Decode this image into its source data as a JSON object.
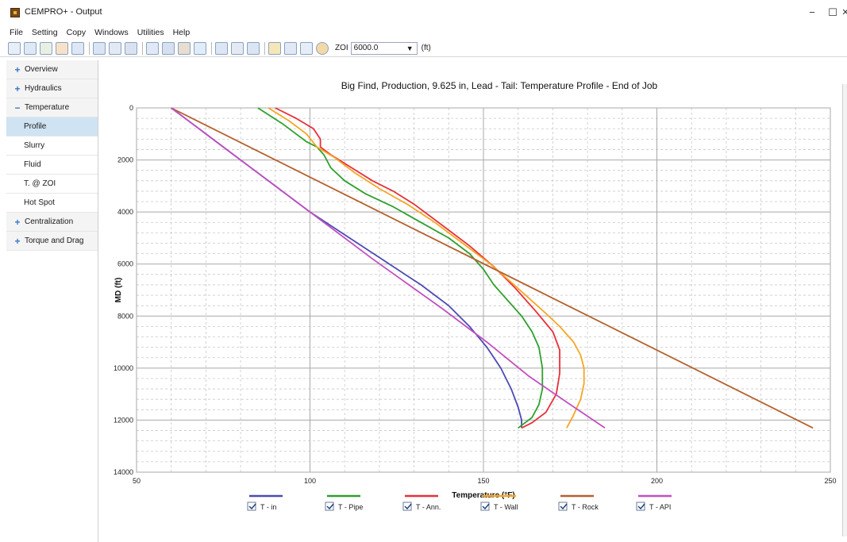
{
  "window": {
    "title": "CEMPRO+ - Output",
    "controls": [
      "−",
      "☐",
      "✕"
    ]
  },
  "menu": [
    "File",
    "Setting",
    "Copy",
    "Windows",
    "Utilities",
    "Help"
  ],
  "toolbar": {
    "zoi_label": "ZOI",
    "zoi_value": "6000.0",
    "unit": "(ft)"
  },
  "sidebar": {
    "items": [
      {
        "label": "Overview",
        "type": "group",
        "icon": "plus-icon"
      },
      {
        "label": "Hydraulics",
        "type": "group",
        "icon": "plus-icon"
      },
      {
        "label": "Temperature",
        "type": "group",
        "icon": "minus-icon"
      },
      {
        "label": "Profile",
        "type": "sub",
        "active": true
      },
      {
        "label": "Slurry",
        "type": "sub"
      },
      {
        "label": "Fluid",
        "type": "sub"
      },
      {
        "label": "T. @ ZOI",
        "type": "sub"
      },
      {
        "label": "Hot Spot",
        "type": "sub"
      },
      {
        "label": "Centralization",
        "type": "group",
        "icon": "plus-icon"
      },
      {
        "label": "Torque and Drag",
        "type": "group",
        "icon": "plus-icon"
      }
    ]
  },
  "chart_data": {
    "type": "line",
    "title": "Big Find, Production, 9.625 in, Lead - Tail:  Temperature Profile - End of Job",
    "xlabel": "Temperature (°F)",
    "ylabel": "MD (ft)",
    "xlim": [
      50,
      250
    ],
    "ylim": [
      0,
      14000
    ],
    "y_inverted": true,
    "x_ticks": [
      50,
      100,
      150,
      200,
      250
    ],
    "y_ticks": [
      0,
      2000,
      4000,
      6000,
      8000,
      10000,
      12000,
      14000
    ],
    "grid": true,
    "legend_position": "bottom",
    "series": [
      {
        "name": "T - in",
        "color": "#4b4bb5",
        "checked": true,
        "points": [
          [
            60,
            0
          ],
          [
            68,
            800
          ],
          [
            76,
            1600
          ],
          [
            84,
            2400
          ],
          [
            92,
            3200
          ],
          [
            100,
            4000
          ],
          [
            108,
            4700
          ],
          [
            116,
            5400
          ],
          [
            124,
            6100
          ],
          [
            132,
            6800
          ],
          [
            140,
            7600
          ],
          [
            146,
            8400
          ],
          [
            151,
            9200
          ],
          [
            155,
            10000
          ],
          [
            158,
            10800
          ],
          [
            160,
            11500
          ],
          [
            161,
            12000
          ],
          [
            161,
            12300
          ]
        ]
      },
      {
        "name": "T - Pipe",
        "color": "#2ea02e",
        "checked": true,
        "points": [
          [
            85,
            0
          ],
          [
            92,
            600
          ],
          [
            96,
            1000
          ],
          [
            99,
            1300
          ],
          [
            102,
            1500
          ],
          [
            104,
            1800
          ],
          [
            106,
            2300
          ],
          [
            110,
            2800
          ],
          [
            116,
            3300
          ],
          [
            124,
            3800
          ],
          [
            132,
            4400
          ],
          [
            140,
            5000
          ],
          [
            146,
            5600
          ],
          [
            150,
            6200
          ],
          [
            153,
            6800
          ],
          [
            157,
            7400
          ],
          [
            161,
            8000
          ],
          [
            164,
            8600
          ],
          [
            166,
            9200
          ],
          [
            167,
            10000
          ],
          [
            167,
            10800
          ],
          [
            166,
            11400
          ],
          [
            164,
            11900
          ],
          [
            160,
            12300
          ]
        ]
      },
      {
        "name": "T - Ann.",
        "color": "#e8303a",
        "checked": true,
        "points": [
          [
            90,
            0
          ],
          [
            96,
            400
          ],
          [
            101,
            800
          ],
          [
            103,
            1200
          ],
          [
            103,
            1500
          ],
          [
            106,
            1800
          ],
          [
            112,
            2300
          ],
          [
            118,
            2800
          ],
          [
            124,
            3200
          ],
          [
            130,
            3700
          ],
          [
            138,
            4500
          ],
          [
            146,
            5300
          ],
          [
            153,
            6100
          ],
          [
            159,
            6900
          ],
          [
            165,
            7800
          ],
          [
            170,
            8600
          ],
          [
            172,
            9300
          ],
          [
            172,
            10200
          ],
          [
            171,
            11000
          ],
          [
            168,
            11700
          ],
          [
            164,
            12100
          ],
          [
            161,
            12300
          ]
        ]
      },
      {
        "name": "T - Wall",
        "color": "#f5a623",
        "checked": true,
        "points": [
          [
            88,
            0
          ],
          [
            94,
            500
          ],
          [
            99,
            1000
          ],
          [
            102,
            1500
          ],
          [
            107,
            1900
          ],
          [
            113,
            2500
          ],
          [
            120,
            3100
          ],
          [
            128,
            3700
          ],
          [
            136,
            4400
          ],
          [
            144,
            5200
          ],
          [
            152,
            6000
          ],
          [
            158,
            6700
          ],
          [
            163,
            7300
          ],
          [
            168,
            7900
          ],
          [
            172,
            8400
          ],
          [
            176,
            9000
          ],
          [
            178,
            9500
          ],
          [
            179,
            10000
          ],
          [
            179,
            10600
          ],
          [
            178,
            11200
          ],
          [
            176,
            11800
          ],
          [
            174,
            12300
          ]
        ]
      },
      {
        "name": "T - Rock",
        "color": "#b5602e",
        "checked": true,
        "points": [
          [
            60,
            0
          ],
          [
            245,
            12300
          ]
        ]
      },
      {
        "name": "T - API",
        "color": "#c050c0",
        "checked": true,
        "points": [
          [
            60,
            0
          ],
          [
            80,
            2000
          ],
          [
            100,
            4000
          ],
          [
            118,
            5800
          ],
          [
            138,
            7700
          ],
          [
            151,
            9000
          ],
          [
            163,
            10300
          ],
          [
            175,
            11400
          ],
          [
            185,
            12300
          ]
        ]
      }
    ]
  }
}
